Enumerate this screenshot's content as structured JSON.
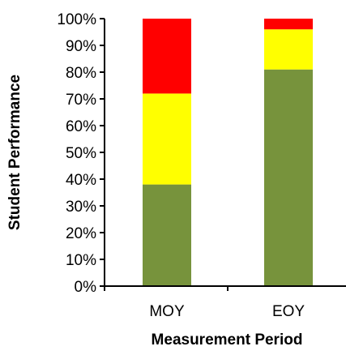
{
  "chart_data": {
    "type": "bar",
    "stacked": true,
    "title": "",
    "xlabel": "Measurement Period",
    "ylabel": "Student Performance",
    "categories": [
      "MOY",
      "EOY"
    ],
    "series": [
      {
        "values": [
          38,
          81
        ],
        "color": "#77933C"
      },
      {
        "values": [
          34,
          15
        ],
        "color": "#FFFF00"
      },
      {
        "values": [
          28,
          4
        ],
        "color": "#FF0000"
      }
    ],
    "ylim": [
      0,
      100
    ],
    "yticks": [
      "0%",
      "10%",
      "20%",
      "30%",
      "40%",
      "50%",
      "60%",
      "70%",
      "80%",
      "90%",
      "100%"
    ],
    "grid": false,
    "legend": "none"
  }
}
